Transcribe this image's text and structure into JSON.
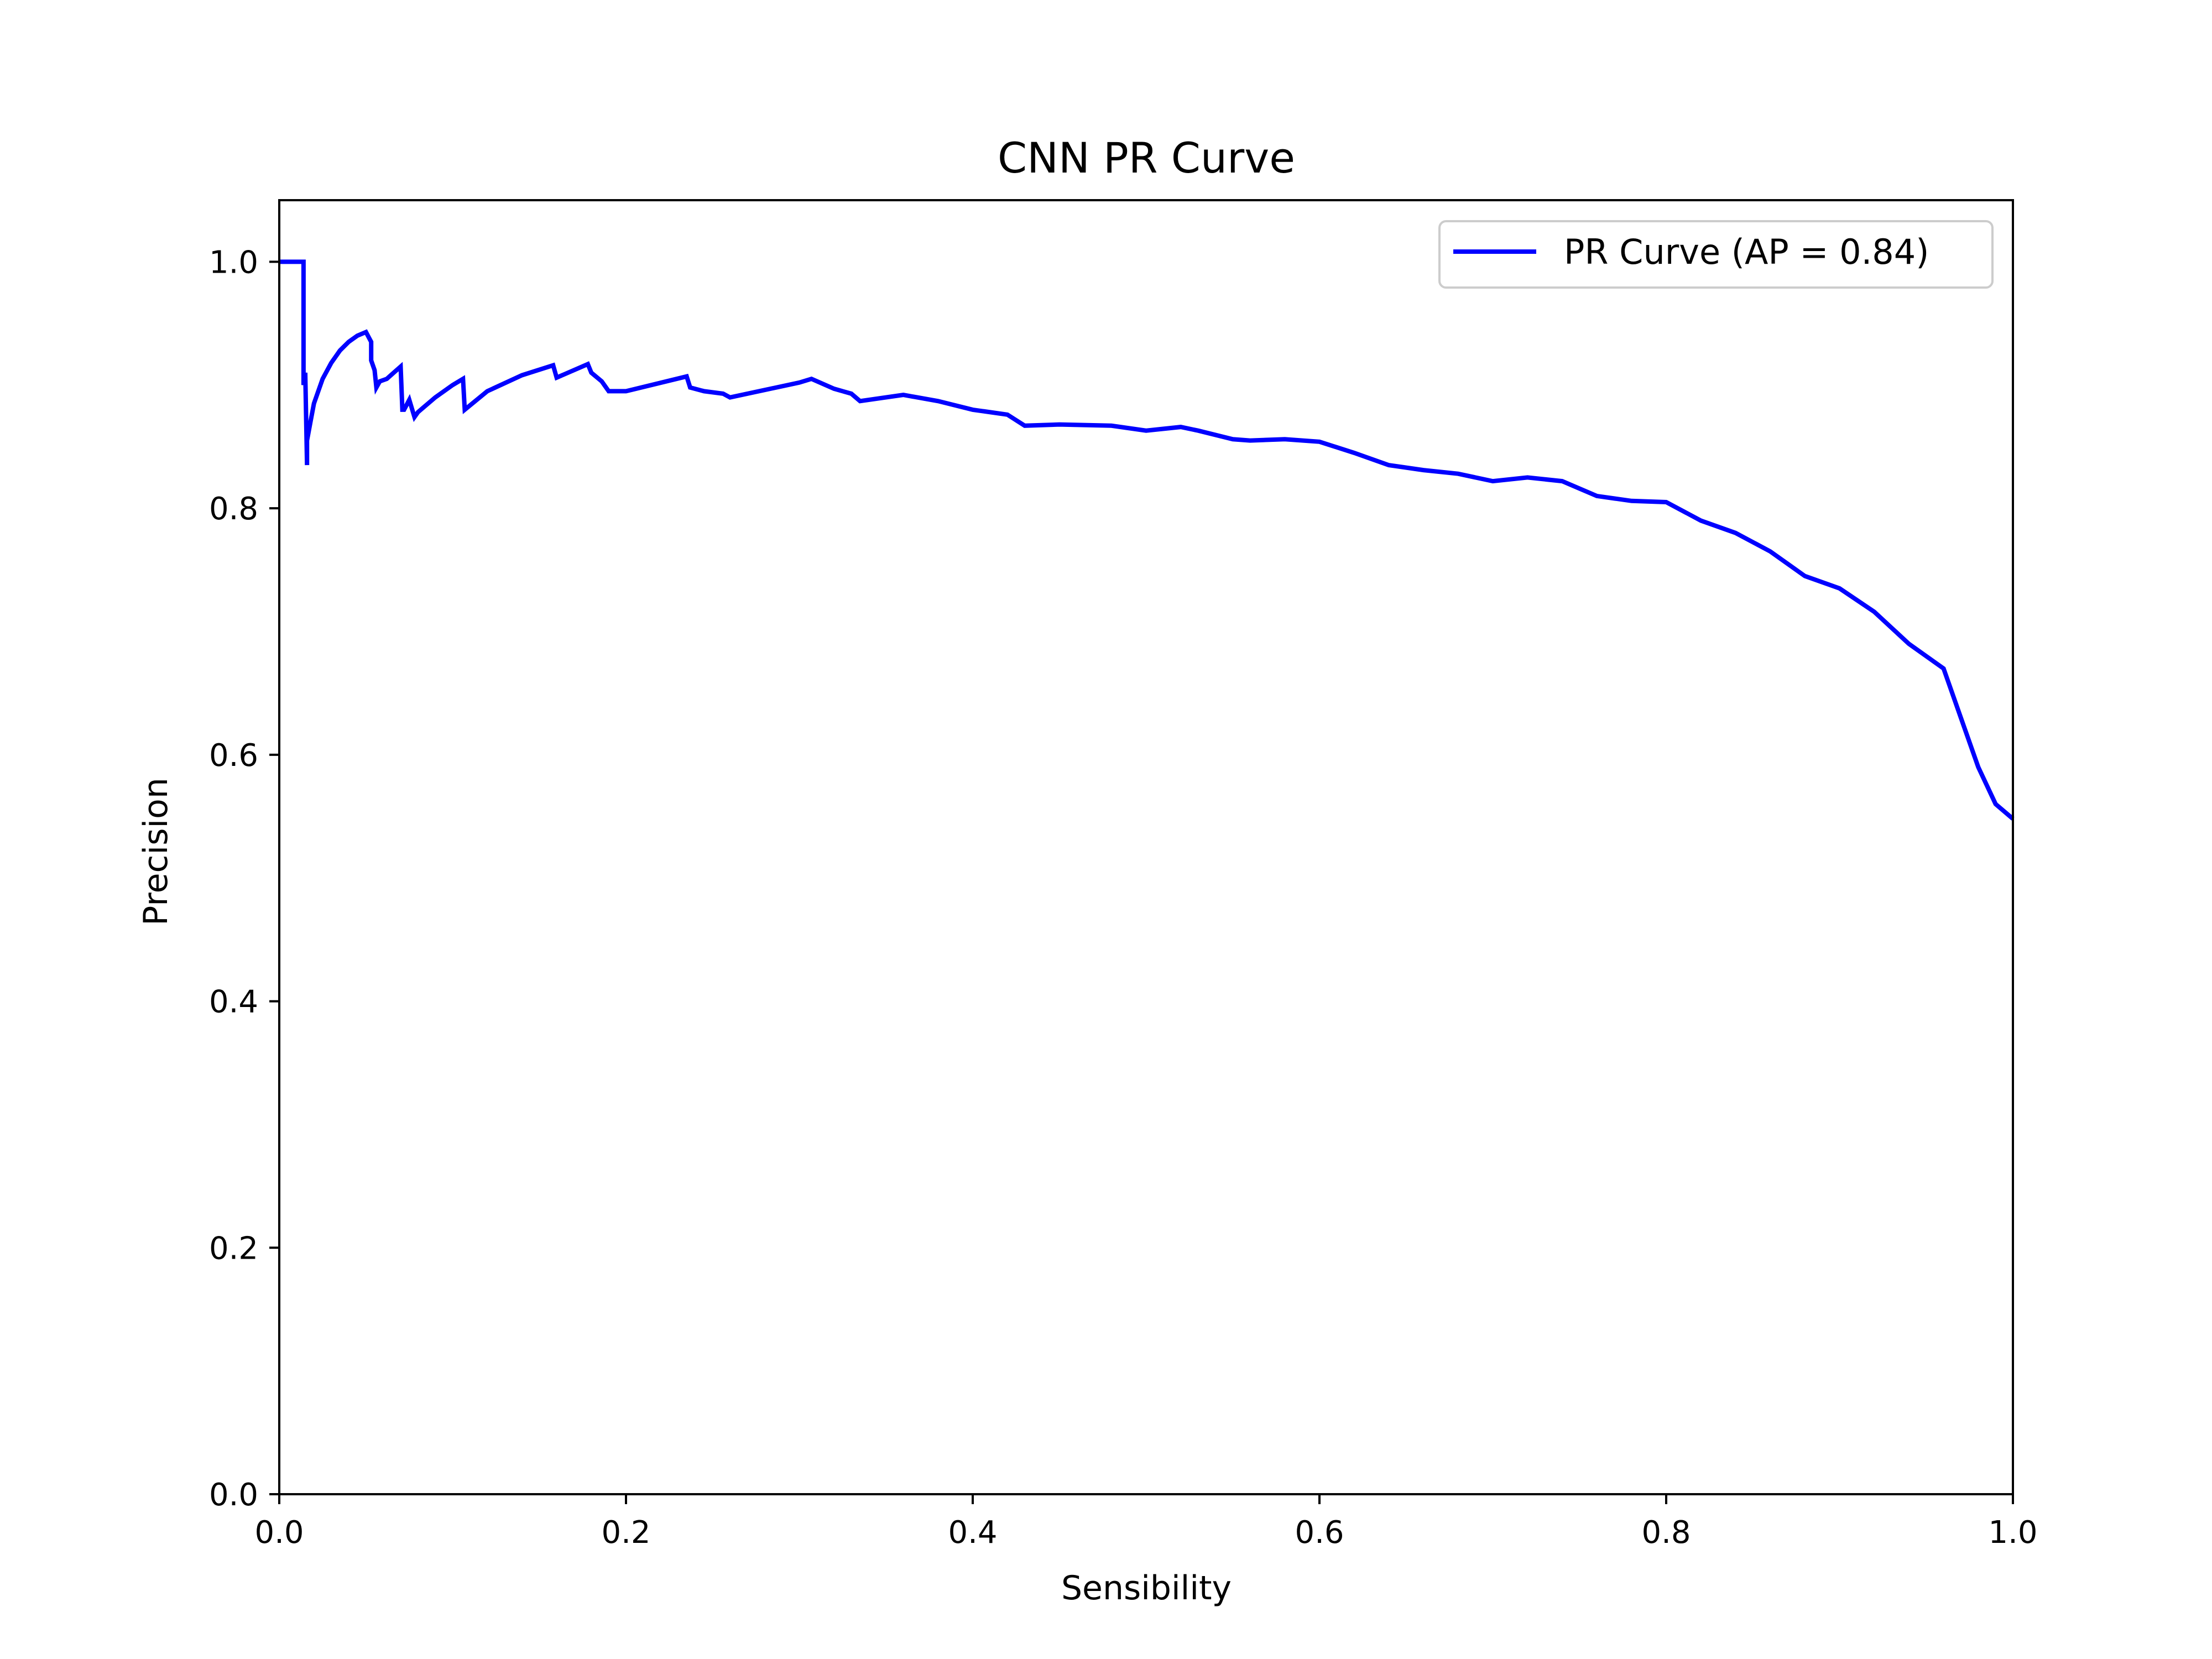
{
  "chart_data": {
    "type": "line",
    "title": "CNN PR Curve",
    "xlabel": "Sensibility",
    "ylabel": "Precision",
    "xlim": [
      0.0,
      1.0
    ],
    "ylim": [
      0.0,
      1.05
    ],
    "xticks": [
      "0.0",
      "0.2",
      "0.4",
      "0.6",
      "0.8",
      "1.0"
    ],
    "yticks": [
      "0.0",
      "0.2",
      "0.4",
      "0.6",
      "0.8",
      "1.0"
    ],
    "grid": false,
    "legend_position": "top-right",
    "series": [
      {
        "name": "PR Curve (AP = 0.84)",
        "color": "#0000ff",
        "x": [
          0.0,
          0.014,
          0.014,
          0.015,
          0.016,
          0.016,
          0.018,
          0.02,
          0.025,
          0.03,
          0.035,
          0.04,
          0.045,
          0.05,
          0.053,
          0.053,
          0.055,
          0.056,
          0.058,
          0.062,
          0.066,
          0.07,
          0.071,
          0.072,
          0.075,
          0.078,
          0.08,
          0.09,
          0.1,
          0.106,
          0.107,
          0.12,
          0.14,
          0.158,
          0.16,
          0.178,
          0.18,
          0.186,
          0.19,
          0.2,
          0.235,
          0.237,
          0.245,
          0.256,
          0.26,
          0.3,
          0.307,
          0.32,
          0.33,
          0.335,
          0.36,
          0.38,
          0.4,
          0.42,
          0.43,
          0.45,
          0.48,
          0.5,
          0.52,
          0.53,
          0.55,
          0.56,
          0.58,
          0.6,
          0.62,
          0.64,
          0.66,
          0.68,
          0.7,
          0.72,
          0.74,
          0.76,
          0.78,
          0.8,
          0.82,
          0.84,
          0.86,
          0.88,
          0.9,
          0.92,
          0.94,
          0.96,
          0.97,
          0.98,
          0.99,
          1.0
        ],
        "y": [
          1.0,
          1.0,
          0.9,
          0.91,
          0.835,
          0.855,
          0.87,
          0.885,
          0.905,
          0.918,
          0.928,
          0.935,
          0.94,
          0.943,
          0.935,
          0.92,
          0.912,
          0.898,
          0.903,
          0.905,
          0.91,
          0.915,
          0.88,
          0.88,
          0.888,
          0.874,
          0.878,
          0.89,
          0.9,
          0.905,
          0.88,
          0.895,
          0.908,
          0.916,
          0.906,
          0.917,
          0.91,
          0.903,
          0.895,
          0.895,
          0.907,
          0.898,
          0.895,
          0.893,
          0.89,
          0.902,
          0.905,
          0.897,
          0.893,
          0.887,
          0.892,
          0.887,
          0.88,
          0.876,
          0.867,
          0.868,
          0.867,
          0.863,
          0.866,
          0.863,
          0.856,
          0.855,
          0.856,
          0.854,
          0.845,
          0.835,
          0.831,
          0.828,
          0.822,
          0.825,
          0.822,
          0.81,
          0.806,
          0.805,
          0.79,
          0.78,
          0.765,
          0.745,
          0.735,
          0.716,
          0.69,
          0.67,
          0.63,
          0.59,
          0.56,
          0.548
        ]
      }
    ]
  }
}
